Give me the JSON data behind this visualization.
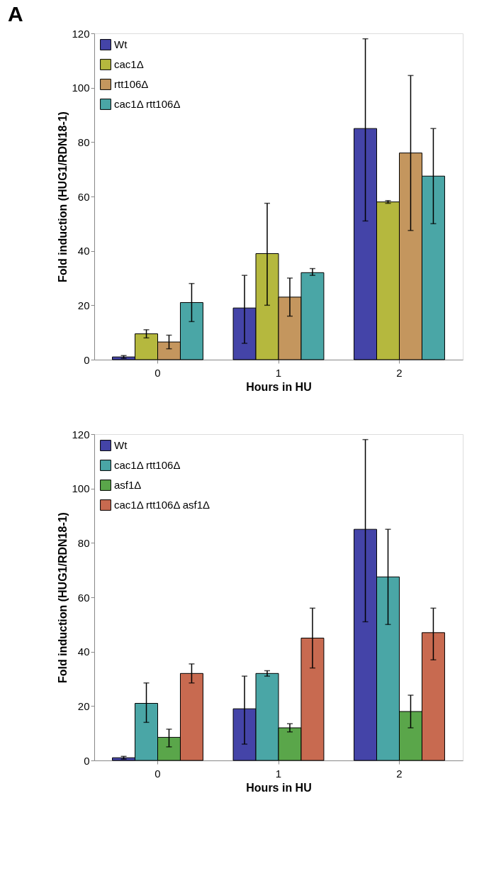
{
  "chart_data": [
    {
      "type": "bar",
      "title": "A",
      "categories": [
        "0",
        "1",
        "2"
      ],
      "xlabel": "Hours in HU",
      "ylabel": "Fold induction (HUG1/RDN18-1)",
      "ylim": [
        0,
        120
      ],
      "yticks": [
        0,
        20,
        40,
        60,
        80,
        100,
        120
      ],
      "grid": false,
      "legend": "top left",
      "series": [
        {
          "name": "Wt",
          "color": "#4444a8",
          "values": [
            1,
            19,
            85
          ],
          "errors": [
            [
              0.5,
              1.5
            ],
            [
              6,
              31
            ],
            [
              51,
              118
            ]
          ]
        },
        {
          "name": "cac1Δ",
          "color": "#b5b83e",
          "values": [
            9.5,
            39,
            58
          ],
          "errors": [
            [
              8,
              11
            ],
            [
              20,
              57.5
            ],
            [
              57.5,
              58.5
            ]
          ]
        },
        {
          "name": "rtt106Δ",
          "color": "#c4965e",
          "values": [
            6.5,
            23,
            76
          ],
          "errors": [
            [
              4,
              9
            ],
            [
              16,
              30
            ],
            [
              47.5,
              104.5
            ]
          ]
        },
        {
          "name": "cac1Δ rtt106Δ",
          "color": "#4aa6a6",
          "values": [
            21,
            32,
            67.5
          ],
          "errors": [
            [
              14,
              28
            ],
            [
              31,
              33.5
            ],
            [
              50,
              85
            ]
          ]
        }
      ]
    },
    {
      "type": "bar",
      "categories": [
        "0",
        "1",
        "2"
      ],
      "xlabel": "Hours in HU",
      "ylabel": "Fold induction (HUG1/RDN18-1)",
      "ylim": [
        0,
        120
      ],
      "yticks": [
        0,
        20,
        40,
        60,
        80,
        100,
        120
      ],
      "grid": false,
      "legend": "top left",
      "series": [
        {
          "name": "Wt",
          "color": "#4444a8",
          "values": [
            1,
            19,
            85
          ],
          "errors": [
            [
              0.5,
              1.5
            ],
            [
              6,
              31
            ],
            [
              51,
              118
            ]
          ]
        },
        {
          "name": "cac1Δ rtt106Δ",
          "color": "#4aa6a6",
          "values": [
            21,
            32,
            67.5
          ],
          "errors": [
            [
              14,
              28.5
            ],
            [
              31,
              33
            ],
            [
              50,
              85
            ]
          ]
        },
        {
          "name": "asf1Δ",
          "color": "#5aa64a",
          "values": [
            8.5,
            12,
            18
          ],
          "errors": [
            [
              5,
              11.5
            ],
            [
              10.5,
              13.5
            ],
            [
              12,
              24
            ]
          ]
        },
        {
          "name": "cac1Δ rtt106Δ asf1Δ",
          "color": "#c86a50",
          "values": [
            32,
            45,
            47
          ],
          "errors": [
            [
              28.5,
              35.5
            ],
            [
              34,
              56
            ],
            [
              37,
              56
            ]
          ]
        }
      ]
    }
  ]
}
